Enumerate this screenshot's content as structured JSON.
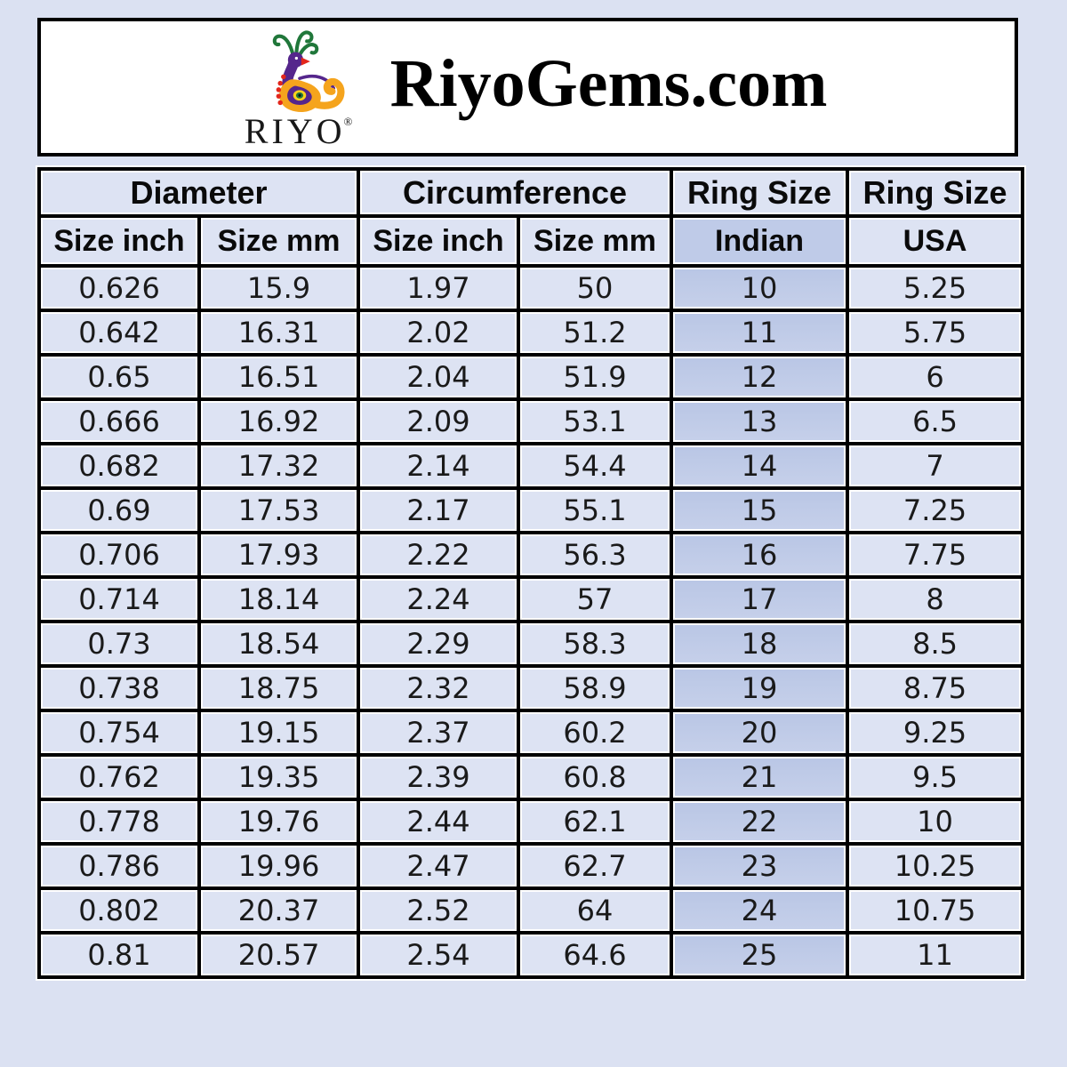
{
  "header": {
    "logo_text": "RIYO",
    "registered_mark": "®",
    "title": "RiyoGems.com"
  },
  "chart_data": {
    "type": "table",
    "title": "RiyoGems.com ring size conversion chart",
    "column_groups": [
      {
        "label": "Diameter",
        "span": 2
      },
      {
        "label": "Circumference",
        "span": 2
      },
      {
        "label": "Ring Size",
        "span": 1
      },
      {
        "label": "Ring Size",
        "span": 1
      }
    ],
    "sub_headers": [
      "Size inch",
      "Size mm",
      "Size inch",
      "Size mm",
      "Indian",
      "USA"
    ],
    "highlighted_column": "Indian",
    "rows": [
      [
        "0.626",
        "15.9",
        "1.97",
        "50",
        "10",
        "5.25"
      ],
      [
        "0.642",
        "16.31",
        "2.02",
        "51.2",
        "11",
        "5.75"
      ],
      [
        "0.65",
        "16.51",
        "2.04",
        "51.9",
        "12",
        "6"
      ],
      [
        "0.666",
        "16.92",
        "2.09",
        "53.1",
        "13",
        "6.5"
      ],
      [
        "0.682",
        "17.32",
        "2.14",
        "54.4",
        "14",
        "7"
      ],
      [
        "0.69",
        "17.53",
        "2.17",
        "55.1",
        "15",
        "7.25"
      ],
      [
        "0.706",
        "17.93",
        "2.22",
        "56.3",
        "16",
        "7.75"
      ],
      [
        "0.714",
        "18.14",
        "2.24",
        "57",
        "17",
        "8"
      ],
      [
        "0.73",
        "18.54",
        "2.29",
        "58.3",
        "18",
        "8.5"
      ],
      [
        "0.738",
        "18.75",
        "2.32",
        "58.9",
        "19",
        "8.75"
      ],
      [
        "0.754",
        "19.15",
        "2.37",
        "60.2",
        "20",
        "9.25"
      ],
      [
        "0.762",
        "19.35",
        "2.39",
        "60.8",
        "21",
        "9.5"
      ],
      [
        "0.778",
        "19.76",
        "2.44",
        "62.1",
        "22",
        "10"
      ],
      [
        "0.786",
        "19.96",
        "2.47",
        "62.7",
        "23",
        "10.25"
      ],
      [
        "0.802",
        "20.37",
        "2.52",
        "64",
        "24",
        "10.75"
      ],
      [
        "0.81",
        "20.57",
        "2.54",
        "64.6",
        "25",
        "11"
      ]
    ]
  },
  "colors": {
    "page_background": "#dbe1f2",
    "cell_background": "#dde3f3",
    "highlight_column_background": "#bfcbe8",
    "table_border": "#000000",
    "header_box_background": "#ffffff",
    "text": "#000000",
    "logo_purple": "#55268c",
    "logo_orange": "#f5a41d",
    "logo_green": "#20773a",
    "logo_red": "#e3261b",
    "logo_yellow": "#f8d21c"
  }
}
